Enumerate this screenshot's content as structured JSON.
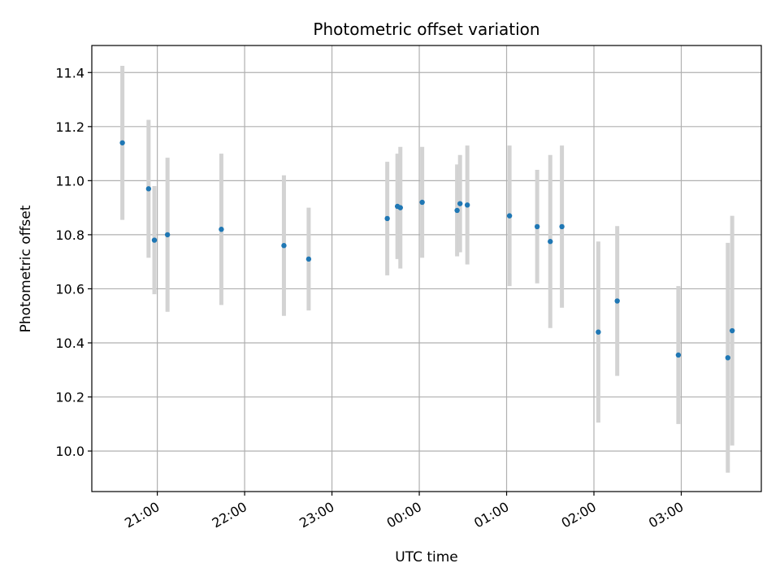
{
  "chart_data": {
    "type": "scatter",
    "title": "Photometric offset variation",
    "xlabel": "UTC time",
    "ylabel": "Photometric offset",
    "x_unit": "hours after 20:00 UTC (next day continues past 24)",
    "xlim": [
      "20:15",
      "03:55"
    ],
    "ylim": [
      9.85,
      11.5
    ],
    "grid": true,
    "x_ticks": [
      "21:00",
      "22:00",
      "23:00",
      "00:00",
      "01:00",
      "02:00",
      "03:00"
    ],
    "y_ticks": [
      "10.0",
      "10.2",
      "10.4",
      "10.6",
      "10.8",
      "11.0",
      "11.2",
      "11.4"
    ],
    "point_color": "#1f77b4",
    "errorbar_color": "#d3d3d3",
    "points": [
      {
        "x": "20:36",
        "y": 11.14,
        "err": 0.285
      },
      {
        "x": "20:54",
        "y": 10.97,
        "err": 0.255
      },
      {
        "x": "20:58",
        "y": 10.78,
        "err": 0.2
      },
      {
        "x": "21:07",
        "y": 10.8,
        "err": 0.285
      },
      {
        "x": "21:44",
        "y": 10.82,
        "err": 0.28
      },
      {
        "x": "22:27",
        "y": 10.76,
        "err": 0.26
      },
      {
        "x": "22:44",
        "y": 10.71,
        "err": 0.19
      },
      {
        "x": "23:38",
        "y": 10.86,
        "err": 0.21
      },
      {
        "x": "23:45",
        "y": 10.905,
        "err": 0.195
      },
      {
        "x": "23:47",
        "y": 10.9,
        "err": 0.225
      },
      {
        "x": "00:02",
        "y": 10.92,
        "err": 0.205
      },
      {
        "x": "00:26",
        "y": 10.89,
        "err": 0.17
      },
      {
        "x": "00:28",
        "y": 10.915,
        "err": 0.18
      },
      {
        "x": "00:33",
        "y": 10.91,
        "err": 0.22
      },
      {
        "x": "01:02",
        "y": 10.87,
        "err": 0.26
      },
      {
        "x": "01:21",
        "y": 10.83,
        "err": 0.21
      },
      {
        "x": "01:30",
        "y": 10.775,
        "err": 0.32
      },
      {
        "x": "01:38",
        "y": 10.83,
        "err": 0.3
      },
      {
        "x": "02:03",
        "y": 10.44,
        "err": 0.335
      },
      {
        "x": "02:16",
        "y": 10.555,
        "err": 0.277
      },
      {
        "x": "02:58",
        "y": 10.355,
        "err": 0.255
      },
      {
        "x": "03:32",
        "y": 10.345,
        "err": 0.425
      },
      {
        "x": "03:35",
        "y": 10.445,
        "err": 0.425
      }
    ]
  }
}
